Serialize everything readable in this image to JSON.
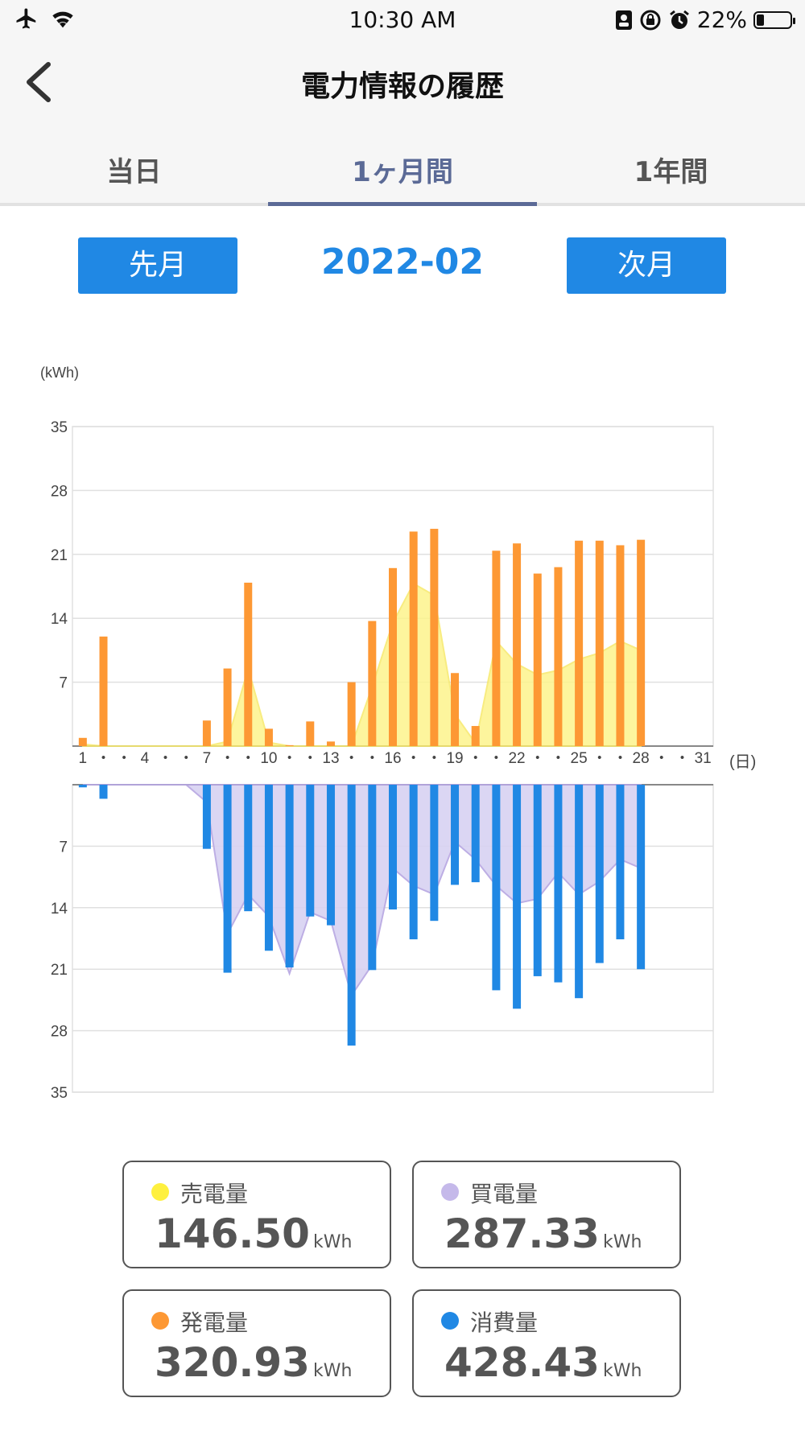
{
  "status": {
    "time": "10:30 AM",
    "battery": "22%",
    "battery_level": 0.22
  },
  "nav": {
    "title": "電力情報の履歴"
  },
  "tabs": [
    {
      "label": "当日"
    },
    {
      "label": "1ヶ月間"
    },
    {
      "label": "1年間"
    }
  ],
  "active_tab": 1,
  "controls": {
    "prev_label": "先月",
    "next_label": "次月",
    "month": "2022-02"
  },
  "legend": [
    {
      "name": "売電量",
      "value": "146.50",
      "unit": "kWh",
      "color": "#fef03f"
    },
    {
      "name": "買電量",
      "value": "287.33",
      "unit": "kWh",
      "color": "#c5b9ea"
    },
    {
      "name": "発電量",
      "value": "320.93",
      "unit": "kWh",
      "color": "#fd9834"
    },
    {
      "name": "消費量",
      "value": "428.43",
      "unit": "kWh",
      "color": "#2088e4"
    }
  ],
  "chart_data": {
    "type": "bar",
    "title": "",
    "ylabel": "(kWh)",
    "xlabel": "(日)",
    "ylim": [
      0,
      35
    ],
    "y_ticks": [
      "35",
      "28",
      "21",
      "14",
      "7"
    ],
    "x_tick_labels": [
      "1",
      "・",
      "・",
      "4",
      "・",
      "・",
      "7",
      "・",
      "・",
      "10",
      "・",
      "・",
      "13",
      "・",
      "・",
      "16",
      "・",
      "・",
      "19",
      "・",
      "・",
      "22",
      "・",
      "・",
      "25",
      "・",
      "・",
      "28",
      "・",
      "・",
      "31"
    ],
    "colors": {
      "generation": "#fd9834",
      "sell_fill": "#fdf48c",
      "sell_line": "#f7e96a",
      "consumption": "#2088e4",
      "buy_fill": "#d8d2f2",
      "buy_line": "#b6a6e2",
      "grid": "#e0e0e0"
    },
    "series": [
      {
        "name": "発電量",
        "panel": "upper",
        "kind": "bar",
        "values": [
          0.9,
          12.0,
          0,
          0,
          0,
          0,
          2.8,
          8.5,
          17.9,
          1.9,
          0.1,
          2.7,
          0.5,
          7.0,
          13.7,
          19.5,
          23.5,
          23.8,
          8.0,
          2.2,
          21.4,
          22.2,
          18.9,
          19.6,
          22.5,
          22.5,
          22.0,
          22.6
        ]
      },
      {
        "name": "売電量",
        "panel": "upper",
        "kind": "area",
        "values": [
          0.2,
          0,
          0,
          0,
          0,
          0,
          0,
          0.5,
          8.5,
          0.4,
          0,
          0,
          0,
          0,
          6.5,
          13.5,
          17.8,
          16.5,
          3.5,
          0.3,
          11.5,
          9.0,
          7.8,
          8.3,
          9.5,
          10.2,
          11.5,
          10.5
        ]
      },
      {
        "name": "消費量",
        "panel": "lower",
        "kind": "bar",
        "values": [
          0.3,
          1.6,
          0,
          0,
          0,
          0,
          7.3,
          21.4,
          14.4,
          18.9,
          20.8,
          15.0,
          16.0,
          29.7,
          21.1,
          14.2,
          17.6,
          15.5,
          11.4,
          11.1,
          23.4,
          25.5,
          21.8,
          22.5,
          24.3,
          20.3,
          17.6,
          21.0
        ]
      },
      {
        "name": "買電量",
        "panel": "lower",
        "kind": "area",
        "values": [
          0,
          0,
          0,
          0,
          0,
          0,
          2.0,
          17.0,
          12.5,
          15.0,
          21.5,
          14.5,
          15.5,
          24.0,
          20.5,
          9.5,
          11.5,
          12.5,
          6.5,
          8.5,
          11.5,
          13.5,
          13.0,
          10.0,
          12.5,
          11.0,
          8.5,
          9.5
        ]
      }
    ]
  }
}
